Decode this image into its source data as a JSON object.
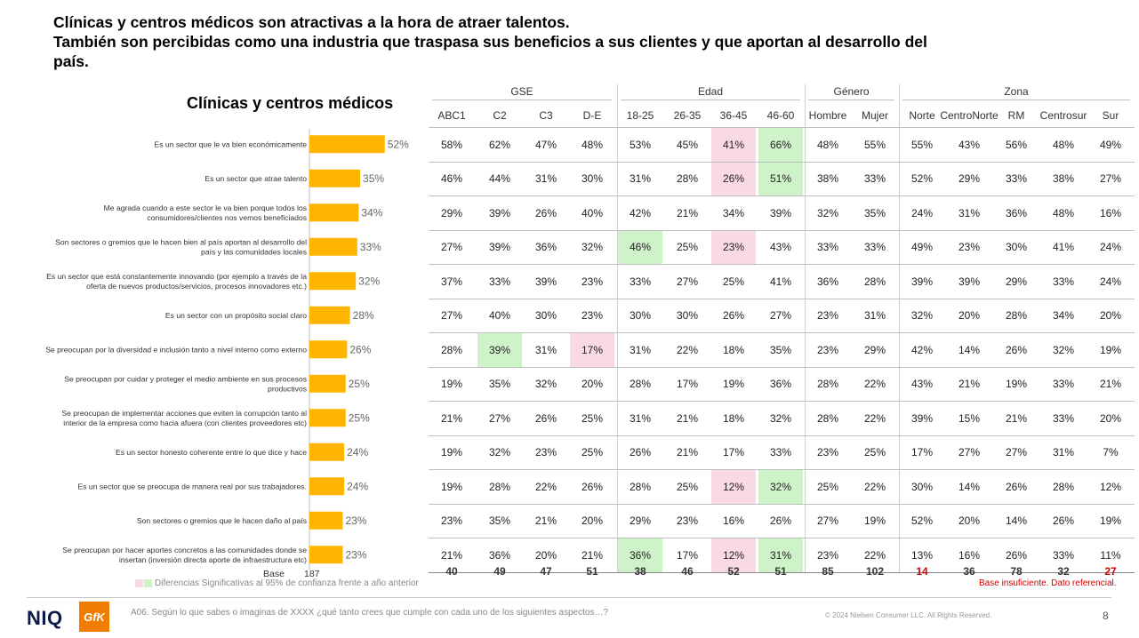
{
  "title": {
    "line1": "Clínicas y centros médicos son atractivas a la hora de atraer talentos.",
    "line2": "También son percibidas como una industria que traspasa sus beneficios a sus clientes y que aportan al desarrollo del",
    "line3": "país."
  },
  "chart_data": {
    "type": "bar",
    "title": "Clínicas y centros médicos",
    "orientation": "horizontal",
    "categories": [
      [
        "Es un sector que le va bien económicamente"
      ],
      [
        "Es un sector que atrae talento"
      ],
      [
        "Me agrada cuando a este sector le va bien porque todos los",
        "consumidores/clientes nos vemos beneficiados"
      ],
      [
        "Son sectores o gremios que le hacen bien al país aportan al desarrollo del",
        "país y las comunidades locales"
      ],
      [
        "Es un sector que está constantemente innovando (por ejemplo a través de la",
        "oferta de nuevos productos/servicios, procesos innovadores etc.)"
      ],
      [
        "Es un sector con un propósito social claro"
      ],
      [
        "Se preocupan por la diversidad e inclusión tanto a nivel interno como externo"
      ],
      [
        "Se preocupan por cuidar y proteger el medio ambiente en sus procesos",
        "productivos"
      ],
      [
        "Se preocupan de implementar acciones que eviten la corrupción tanto al",
        "interior de la empresa como hacia afuera (con clientes proveedores etc)"
      ],
      [
        "Es un sector honesto coherente entre lo que dice y hace"
      ],
      [
        "Es un sector que se preocupa de manera real por sus trabajadores."
      ],
      [
        "Son sectores o gremios que le hacen daño al país"
      ],
      [
        "Se preocupan por hacer aportes concretos a las comunidades donde se",
        "insertan (inversión directa aporte de infraestructura etc)"
      ]
    ],
    "values": [
      52,
      35,
      34,
      33,
      32,
      28,
      26,
      25,
      25,
      24,
      24,
      23,
      23
    ],
    "value_suffix": "%",
    "bar_color": "#FFB400",
    "base_label": "Base",
    "base_value": "187"
  },
  "table": {
    "groups": [
      {
        "name": "GSE",
        "columns": [
          "ABC1",
          "C2",
          "C3",
          "D-E"
        ]
      },
      {
        "name": "Edad",
        "columns": [
          "18-25",
          "26-35",
          "36-45",
          "46-60"
        ]
      },
      {
        "name": "Género",
        "columns": [
          "Hombre",
          "Mujer"
        ]
      },
      {
        "name": "Zona",
        "columns": [
          [
            "Norte"
          ],
          [
            "Centro",
            "Norte"
          ],
          [
            "RM"
          ],
          [
            "Centro",
            "sur"
          ],
          [
            "Sur"
          ]
        ]
      }
    ],
    "rows": [
      [
        "58%",
        "62%",
        "47%",
        "48%",
        "53%",
        "45%",
        "41%",
        "66%",
        "48%",
        "55%",
        "55%",
        "43%",
        "56%",
        "48%",
        "49%"
      ],
      [
        "46%",
        "44%",
        "31%",
        "30%",
        "31%",
        "28%",
        "26%",
        "51%",
        "38%",
        "33%",
        "52%",
        "29%",
        "33%",
        "38%",
        "27%"
      ],
      [
        "29%",
        "39%",
        "26%",
        "40%",
        "42%",
        "21%",
        "34%",
        "39%",
        "32%",
        "35%",
        "24%",
        "31%",
        "36%",
        "48%",
        "16%"
      ],
      [
        "27%",
        "39%",
        "36%",
        "32%",
        "46%",
        "25%",
        "23%",
        "43%",
        "33%",
        "33%",
        "49%",
        "23%",
        "30%",
        "41%",
        "24%"
      ],
      [
        "37%",
        "33%",
        "39%",
        "23%",
        "33%",
        "27%",
        "25%",
        "41%",
        "36%",
        "28%",
        "39%",
        "39%",
        "29%",
        "33%",
        "24%"
      ],
      [
        "27%",
        "40%",
        "30%",
        "23%",
        "30%",
        "30%",
        "26%",
        "27%",
        "23%",
        "31%",
        "32%",
        "20%",
        "28%",
        "34%",
        "20%"
      ],
      [
        "28%",
        "39%",
        "31%",
        "17%",
        "31%",
        "22%",
        "18%",
        "35%",
        "23%",
        "29%",
        "42%",
        "14%",
        "26%",
        "32%",
        "19%"
      ],
      [
        "19%",
        "35%",
        "32%",
        "20%",
        "28%",
        "17%",
        "19%",
        "36%",
        "28%",
        "22%",
        "43%",
        "21%",
        "19%",
        "33%",
        "21%"
      ],
      [
        "21%",
        "27%",
        "26%",
        "25%",
        "31%",
        "21%",
        "18%",
        "32%",
        "28%",
        "22%",
        "39%",
        "15%",
        "21%",
        "33%",
        "20%"
      ],
      [
        "19%",
        "32%",
        "23%",
        "25%",
        "26%",
        "21%",
        "17%",
        "33%",
        "23%",
        "25%",
        "17%",
        "27%",
        "27%",
        "31%",
        "7%"
      ],
      [
        "19%",
        "28%",
        "22%",
        "26%",
        "28%",
        "25%",
        "12%",
        "32%",
        "25%",
        "22%",
        "30%",
        "14%",
        "26%",
        "28%",
        "12%"
      ],
      [
        "23%",
        "35%",
        "21%",
        "20%",
        "29%",
        "23%",
        "16%",
        "26%",
        "27%",
        "19%",
        "52%",
        "20%",
        "14%",
        "26%",
        "19%"
      ],
      [
        "21%",
        "36%",
        "20%",
        "21%",
        "36%",
        "17%",
        "12%",
        "31%",
        "23%",
        "22%",
        "13%",
        "16%",
        "26%",
        "33%",
        "11%"
      ]
    ],
    "highlights": [
      {
        "row": 0,
        "col": 6,
        "color": "pink"
      },
      {
        "row": 0,
        "col": 7,
        "color": "green"
      },
      {
        "row": 1,
        "col": 6,
        "color": "pink"
      },
      {
        "row": 1,
        "col": 7,
        "color": "green"
      },
      {
        "row": 3,
        "col": 4,
        "color": "green"
      },
      {
        "row": 3,
        "col": 6,
        "color": "pink"
      },
      {
        "row": 6,
        "col": 1,
        "color": "green"
      },
      {
        "row": 6,
        "col": 3,
        "color": "pink"
      },
      {
        "row": 10,
        "col": 6,
        "color": "pink"
      },
      {
        "row": 10,
        "col": 7,
        "color": "green"
      },
      {
        "row": 12,
        "col": 4,
        "color": "green"
      },
      {
        "row": 12,
        "col": 6,
        "color": "pink"
      },
      {
        "row": 12,
        "col": 7,
        "color": "green"
      }
    ],
    "bases": [
      "40",
      "49",
      "47",
      "51",
      "38",
      "46",
      "52",
      "51",
      "85",
      "102",
      "14",
      "36",
      "78",
      "32",
      "27"
    ],
    "base_insufficient": [
      10,
      14
    ],
    "highlight_colors": {
      "pink": "#F9D9E4",
      "green": "#CFF3C9"
    }
  },
  "footer": {
    "legend_text": "Diferencias Significativas al 95% de confianza frente a año anterior",
    "insufficient_text": "Base insuficiente. Dato referencial.",
    "question": "A06. Según lo que sabes o imaginas de XXXX ¿qué tanto crees que cumple con cada uno de los siguientes aspectos…?",
    "copyright": "© 2024 Nielsen Consumer LLC. All Rights Reserved.",
    "page": "8",
    "logo_niq": "NIQ",
    "logo_gfk": "GfK"
  }
}
